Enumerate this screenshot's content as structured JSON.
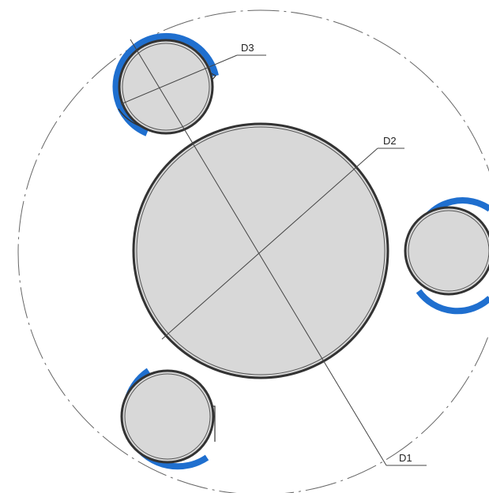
{
  "diagram": {
    "labels": {
      "d1": "D1",
      "d2": "D2",
      "d3": "D3"
    },
    "colors": {
      "disc_fill": "#d8d8d8",
      "disc_stroke": "#333333",
      "accent_arc": "#1f6fcf",
      "outline": "#666666",
      "leader": "#444444"
    }
  }
}
